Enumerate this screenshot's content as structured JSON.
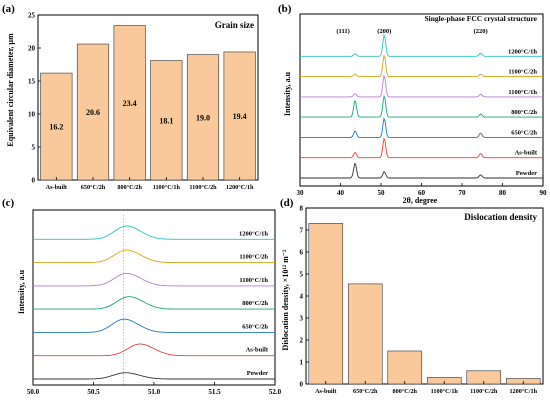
{
  "chart_data": [
    {
      "panel": "(a)",
      "type": "bar",
      "title": "Grain size",
      "ylabel": "Equivalent circular diameter, μm",
      "categories": [
        "As-built",
        "650°C/2h",
        "800°C/2h",
        "1100°C/1h",
        "1100°C/2h",
        "1200°C/1h"
      ],
      "values": [
        16.2,
        20.6,
        23.4,
        18.1,
        19.0,
        19.4
      ],
      "data_labels": [
        "16.2",
        "20.6",
        "23.4",
        "18.1",
        "19.0",
        "19.4"
      ],
      "ylim": [
        0,
        25
      ],
      "yticks": [
        "0",
        "5",
        "10",
        "15",
        "20",
        "25"
      ],
      "bar_color": "#f9c89b"
    },
    {
      "panel": "(b)",
      "type": "line",
      "title": "Single-phase FCC crystal structure",
      "xlabel": "2θ, degree",
      "ylabel": "Intensity, a.u",
      "xlim": [
        30,
        90
      ],
      "xticks": [
        "30",
        "40",
        "50",
        "60",
        "70",
        "80",
        "90"
      ],
      "peaks": [
        {
          "label": "(111)",
          "x": 43.6
        },
        {
          "label": "(200)",
          "x": 50.8
        },
        {
          "label": "(220)",
          "x": 74.6
        }
      ],
      "series": [
        {
          "name": "Powder",
          "color": "#333333",
          "peak_heights": [
            0.7,
            0.3,
            0.15
          ]
        },
        {
          "name": "As-built",
          "color": "#e8413a",
          "peak_heights": [
            0.25,
            0.9,
            0.2
          ]
        },
        {
          "name": "650°C/2h",
          "color": "#1f77c4",
          "peak_heights": [
            0.3,
            0.9,
            0.2
          ]
        },
        {
          "name": "800°C/2h",
          "color": "#1aa478",
          "peak_heights": [
            0.8,
            1.0,
            0.15
          ]
        },
        {
          "name": "1100°C/1h",
          "color": "#b57ed6",
          "peak_heights": [
            0.15,
            1.0,
            0.12
          ]
        },
        {
          "name": "1100°C/2h",
          "color": "#d9a41a",
          "peak_heights": [
            0.12,
            1.0,
            0.12
          ]
        },
        {
          "name": "1200°C/1h",
          "color": "#2cc2c2",
          "peak_heights": [
            0.12,
            1.0,
            0.15
          ]
        }
      ]
    },
    {
      "panel": "(c)",
      "type": "line",
      "xlabel": "",
      "ylabel": "Intensity, a.u",
      "xlim": [
        50.0,
        52.0
      ],
      "xticks": [
        "50.0",
        "50.5",
        "51.0",
        "51.5",
        "52.0"
      ],
      "reference_line_x": 50.75,
      "series": [
        {
          "name": "Powder",
          "color": "#333333",
          "peak_center": 50.74,
          "peak_height": 0.4
        },
        {
          "name": "As-built",
          "color": "#e8413a",
          "peak_center": 50.86,
          "peak_height": 0.75
        },
        {
          "name": "650°C/2h",
          "color": "#1f77c4",
          "peak_center": 50.73,
          "peak_height": 0.85
        },
        {
          "name": "800°C/2h",
          "color": "#1aa478",
          "peak_center": 50.77,
          "peak_height": 0.8
        },
        {
          "name": "1100°C/1h",
          "color": "#b57ed6",
          "peak_center": 50.75,
          "peak_height": 0.8
        },
        {
          "name": "1100°C/2h",
          "color": "#d9a41a",
          "peak_center": 50.75,
          "peak_height": 0.8
        },
        {
          "name": "1200°C/1h",
          "color": "#2cc2c2",
          "peak_center": 50.75,
          "peak_height": 0.85
        }
      ]
    },
    {
      "panel": "(d)",
      "type": "bar",
      "title": "Dislocation density",
      "ylabel": "Dislocation density, ×10¹² m⁻²",
      "categories": [
        "As-built",
        "650°C/2h",
        "800°C/2h",
        "1100°C/1h",
        "1100°C/2h",
        "1200°C/1h"
      ],
      "values": [
        7.3,
        4.55,
        1.5,
        0.3,
        0.6,
        0.25
      ],
      "ylim": [
        0,
        8
      ],
      "yticks": [
        "0",
        "1",
        "2",
        "3",
        "4",
        "5",
        "6",
        "7",
        "8"
      ],
      "bar_color": "#f9c89b"
    }
  ]
}
